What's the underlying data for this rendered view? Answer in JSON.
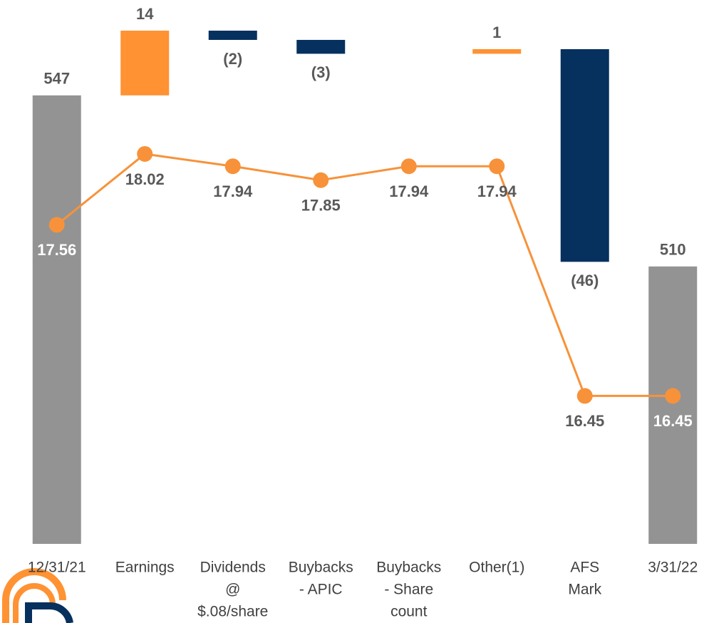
{
  "chart_data": {
    "type": "waterfall",
    "categories": [
      [
        "12/31/21"
      ],
      [
        "Earnings"
      ],
      [
        "Dividends",
        "@",
        "$.08/share"
      ],
      [
        "Buybacks",
        "- APIC"
      ],
      [
        "Buybacks",
        "- Share",
        "count"
      ],
      [
        "Other(1)"
      ],
      [
        "AFS",
        "Mark"
      ],
      [
        "3/31/22"
      ]
    ],
    "values": [
      547,
      14,
      -2,
      -3,
      null,
      1,
      -46,
      510
    ],
    "value_labels": [
      "547",
      "14",
      "(2)",
      "(3)",
      null,
      "1",
      "(46)",
      "510"
    ],
    "total_color": "#939393",
    "increase_color": "#ff9233",
    "decrease_color": "#06305e",
    "ylim": [
      450,
      561
    ],
    "line": {
      "color": "#f7923a",
      "values": [
        17.56,
        18.02,
        17.94,
        17.85,
        17.94,
        17.94,
        16.45,
        16.45
      ],
      "axis": "y2"
    },
    "y2lim": [
      15.49,
      18.82
    ]
  }
}
